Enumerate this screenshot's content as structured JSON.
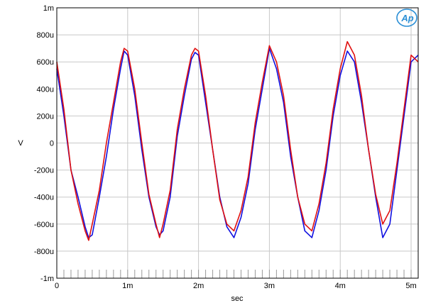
{
  "chart_data": {
    "type": "line",
    "xlabel": "sec",
    "ylabel": "V",
    "xlim": [
      0,
      0.0051
    ],
    "ylim": [
      -0.001,
      0.001
    ],
    "x_ticks": [
      {
        "value": 0,
        "label": "0"
      },
      {
        "value": 0.001,
        "label": "1m"
      },
      {
        "value": 0.002,
        "label": "2m"
      },
      {
        "value": 0.003,
        "label": "3m"
      },
      {
        "value": 0.004,
        "label": "4m"
      },
      {
        "value": 0.005,
        "label": "5m"
      }
    ],
    "y_ticks": [
      {
        "value": 0.001,
        "label": "1m"
      },
      {
        "value": 0.0008,
        "label": "800u"
      },
      {
        "value": 0.0006,
        "label": "600u"
      },
      {
        "value": 0.0004,
        "label": "400u"
      },
      {
        "value": 0.0002,
        "label": "200u"
      },
      {
        "value": 0,
        "label": "0"
      },
      {
        "value": -0.0002,
        "label": "-200u"
      },
      {
        "value": -0.0004,
        "label": "-400u"
      },
      {
        "value": -0.0006,
        "label": "-600u"
      },
      {
        "value": -0.0008,
        "label": "-800u"
      },
      {
        "value": -0.001,
        "label": "-1m"
      }
    ],
    "grid": true,
    "logo": "Ap",
    "series": [
      {
        "color": "#1010e0",
        "x": [
          0,
          0.0001,
          0.0002,
          0.0003,
          0.0004,
          0.00045,
          0.0005,
          0.0006,
          0.0007,
          0.0008,
          0.0009,
          0.00095,
          0.001,
          0.0011,
          0.0012,
          0.0013,
          0.0014,
          0.00145,
          0.0015,
          0.0016,
          0.0017,
          0.0018,
          0.0019,
          0.00195,
          0.002,
          0.0021,
          0.0022,
          0.0023,
          0.0024,
          0.0025,
          0.0026,
          0.0027,
          0.0028,
          0.0029,
          0.003,
          0.0031,
          0.0032,
          0.0033,
          0.0034,
          0.0035,
          0.0036,
          0.0037,
          0.0038,
          0.0039,
          0.004,
          0.0041,
          0.0042,
          0.0043,
          0.0044,
          0.0045,
          0.0046,
          0.0047,
          0.0048,
          0.0049,
          0.005,
          0.0051
        ],
        "y": [
          0.00055,
          0.0002,
          -0.0002,
          -0.0004,
          -0.00062,
          -0.0007,
          -0.00068,
          -0.0004,
          -0.0001,
          0.00025,
          0.00055,
          0.00068,
          0.00065,
          0.00035,
          -5e-05,
          -0.0004,
          -0.00062,
          -0.00068,
          -0.00065,
          -0.0004,
          5e-05,
          0.00035,
          0.00062,
          0.00067,
          0.00065,
          0.0003,
          -5e-05,
          -0.0004,
          -0.00062,
          -0.0007,
          -0.00055,
          -0.0003,
          0.0001,
          0.0004,
          0.0007,
          0.00055,
          0.0003,
          -0.0001,
          -0.0004,
          -0.00065,
          -0.0007,
          -0.0005,
          -0.0002,
          0.0002,
          0.0005,
          0.00068,
          0.0006,
          0.0003,
          -5e-05,
          -0.0004,
          -0.0007,
          -0.0006,
          -0.0002,
          0.0002,
          0.0006,
          0.00065
        ]
      },
      {
        "color": "#e01010",
        "x": [
          0,
          0.0001,
          0.0002,
          0.0003,
          0.0004,
          0.00045,
          0.0005,
          0.0006,
          0.0007,
          0.0008,
          0.0009,
          0.00095,
          0.001,
          0.0011,
          0.0012,
          0.0013,
          0.0014,
          0.00145,
          0.0015,
          0.0016,
          0.0017,
          0.0018,
          0.0019,
          0.00195,
          0.002,
          0.0021,
          0.0022,
          0.0023,
          0.0024,
          0.0025,
          0.0026,
          0.0027,
          0.0028,
          0.0029,
          0.003,
          0.0031,
          0.0032,
          0.0033,
          0.0034,
          0.0035,
          0.0036,
          0.0037,
          0.0038,
          0.0039,
          0.004,
          0.0041,
          0.0042,
          0.0043,
          0.0044,
          0.0045,
          0.0046,
          0.0047,
          0.0048,
          0.0049,
          0.005,
          0.0051
        ],
        "y": [
          0.0006,
          0.00025,
          -0.0002,
          -0.00045,
          -0.00065,
          -0.00072,
          -0.0006,
          -0.00035,
          0.0,
          0.0003,
          0.0006,
          0.0007,
          0.00068,
          0.0004,
          0.0,
          -0.00038,
          -0.0006,
          -0.0007,
          -0.0006,
          -0.00035,
          0.0001,
          0.0004,
          0.00065,
          0.0007,
          0.00068,
          0.00035,
          -5e-05,
          -0.00042,
          -0.0006,
          -0.00065,
          -0.0005,
          -0.00025,
          0.00015,
          0.00045,
          0.00072,
          0.0006,
          0.00035,
          -5e-05,
          -0.0004,
          -0.0006,
          -0.00065,
          -0.00045,
          -0.00015,
          0.00025,
          0.00055,
          0.00075,
          0.00065,
          0.00035,
          -5e-05,
          -0.00038,
          -0.0006,
          -0.0005,
          -0.00015,
          0.00025,
          0.00065,
          0.0006
        ]
      }
    ]
  }
}
